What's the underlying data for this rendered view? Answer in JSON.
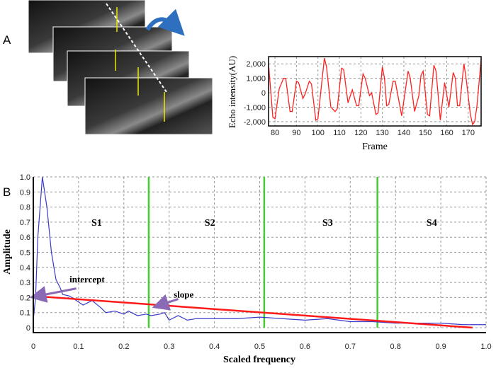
{
  "panel_labels": {
    "a": "A",
    "b": "B"
  },
  "icons": {
    "curved_arrow": "curved-arrow-icon"
  },
  "colors": {
    "echo": "#ff2020",
    "spectrum": "#3a3ac8",
    "fit": "#ff1a1a",
    "boundary": "#44cc33",
    "arrow": "#2e6fc0",
    "pointer": "#8a6ab5",
    "marker": "#e8e800"
  },
  "chart_data": [
    {
      "type": "line",
      "title": "",
      "xlabel": "Frame",
      "ylabel": "Echo intensity(AU)",
      "xlim": [
        77,
        176
      ],
      "ylim": [
        -2300,
        2500
      ],
      "xticks": [
        "80",
        "90",
        "100",
        "110",
        "120",
        "130",
        "140",
        "150",
        "160",
        "170"
      ],
      "yticks": [
        "2,000",
        "1,000",
        "0",
        "-1,000",
        "-2,000"
      ],
      "grid": true,
      "series": [
        {
          "name": "echo",
          "x": [
            77,
            79,
            80,
            82,
            84,
            85,
            87,
            88,
            90,
            91,
            93,
            94,
            96,
            97,
            99,
            100,
            103,
            104,
            106,
            108,
            109,
            111,
            112,
            114,
            116,
            118,
            119,
            121,
            122,
            124,
            125,
            127,
            128,
            130,
            131,
            132,
            133,
            135,
            136,
            139,
            142,
            143,
            145,
            147,
            148,
            149,
            151,
            152,
            154,
            155,
            157,
            159,
            161,
            163,
            164,
            165,
            166,
            168,
            169,
            171,
            172,
            173,
            174,
            176
          ],
          "y": [
            2000,
            -1700,
            -1800,
            300,
            1000,
            1000,
            -1300,
            -1300,
            800,
            700,
            -400,
            -100,
            800,
            600,
            -1900,
            -1800,
            2400,
            1800,
            -1000,
            -1300,
            -1100,
            1700,
            1600,
            -700,
            200,
            -900,
            -900,
            1300,
            1000,
            -200,
            0,
            -1500,
            -1400,
            1800,
            1000,
            -900,
            -800,
            800,
            800,
            -1600,
            1500,
            1000,
            -1300,
            -200,
            1200,
            1500,
            -1500,
            -1600,
            1900,
            1500,
            -1900,
            700,
            -1000,
            1400,
            1000,
            -900,
            -900,
            2000,
            1000,
            -1500,
            -2200,
            -2000,
            -1000,
            2300
          ]
        }
      ]
    },
    {
      "type": "line",
      "title": "",
      "xlabel": "Scaled frequency",
      "ylabel": "Amplitude",
      "xlim": [
        0,
        1
      ],
      "ylim": [
        0,
        1
      ],
      "xticks": [
        "0",
        "0.1",
        "0.2",
        "0.3",
        "0.4",
        "0.5",
        "0.6",
        "0.7",
        "0.8",
        "0.9",
        "1.0"
      ],
      "yticks": [
        "0",
        "0.1",
        "0.2",
        "0.3",
        "0.4",
        "0.5",
        "0.6",
        "0.7",
        "0.8",
        "0.9",
        "1.0"
      ],
      "grid": true,
      "series": [
        {
          "name": "spectrum",
          "x": [
            0,
            0.005,
            0.01,
            0.02,
            0.03,
            0.04,
            0.05,
            0.06,
            0.065,
            0.08,
            0.09,
            0.1,
            0.11,
            0.13,
            0.15,
            0.16,
            0.18,
            0.2,
            0.21,
            0.23,
            0.25,
            0.26,
            0.28,
            0.29,
            0.3,
            0.32,
            0.34,
            0.36,
            0.4,
            0.45,
            0.5,
            0.55,
            0.6,
            0.65,
            0.7,
            0.75,
            0.8,
            0.85,
            0.9,
            0.95,
            1.0
          ],
          "y": [
            0.05,
            0.2,
            0.6,
            1.0,
            0.8,
            0.5,
            0.32,
            0.26,
            0.22,
            0.21,
            0.19,
            0.17,
            0.15,
            0.18,
            0.13,
            0.1,
            0.11,
            0.09,
            0.11,
            0.08,
            0.09,
            0.08,
            0.09,
            0.1,
            0.05,
            0.08,
            0.05,
            0.06,
            0.06,
            0.06,
            0.07,
            0.06,
            0.05,
            0.06,
            0.04,
            0.04,
            0.03,
            0.03,
            0.03,
            0.02,
            0.02
          ]
        },
        {
          "name": "linear-fit",
          "x": [
            0,
            0.97
          ],
          "y": [
            0.21,
            0
          ]
        }
      ],
      "boundaries": [
        0.255,
        0.51,
        0.76
      ],
      "segments": [
        {
          "label": "S1",
          "x": 0.14
        },
        {
          "label": "S2",
          "x": 0.39
        },
        {
          "label": "S3",
          "x": 0.65
        },
        {
          "label": "S4",
          "x": 0.88
        }
      ],
      "annotations": [
        {
          "text": "intercept",
          "x": 0.08,
          "y": 0.3
        },
        {
          "text": "slope",
          "x": 0.31,
          "y": 0.2
        }
      ]
    }
  ]
}
